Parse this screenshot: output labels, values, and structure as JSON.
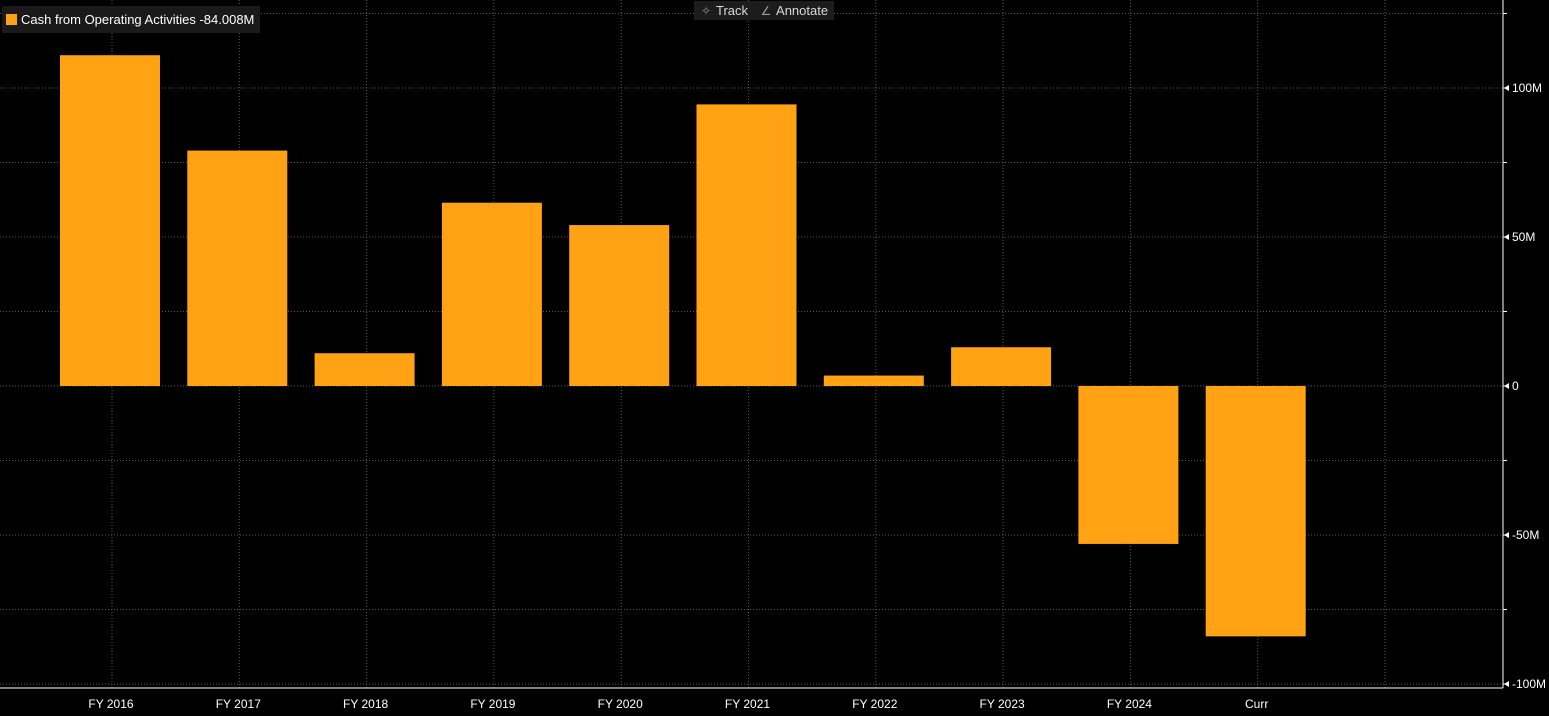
{
  "legend": {
    "label": "Cash from Operating Activities -84.008M",
    "color": "#ffa213"
  },
  "toolbar": {
    "track_label": "Track",
    "track_icon": "crosshair-icon",
    "annotate_label": "Annotate",
    "annotate_icon": "pencil-icon"
  },
  "chart_data": {
    "type": "bar",
    "title": "",
    "xlabel": "",
    "ylabel": "",
    "categories": [
      "FY 2016",
      "FY 2017",
      "FY 2018",
      "FY 2019",
      "FY 2020",
      "FY 2021",
      "FY 2022",
      "FY 2023",
      "FY 2024",
      "Curr"
    ],
    "series": [
      {
        "name": "Cash from Operating Activities",
        "color": "#ffa213",
        "values": [
          111,
          79,
          11,
          61.5,
          54,
          94.5,
          3.5,
          13,
          -53,
          -84.008
        ]
      }
    ],
    "ylim": [
      -100,
      127
    ],
    "yticks": [
      {
        "value": 100,
        "label": "100M"
      },
      {
        "value": 50,
        "label": "50M"
      },
      {
        "value": 0,
        "label": "0"
      },
      {
        "value": -50,
        "label": "-50M"
      },
      {
        "value": -100,
        "label": "-100M"
      }
    ],
    "grid": true,
    "y_axis_position": "right",
    "background": "#000000"
  }
}
